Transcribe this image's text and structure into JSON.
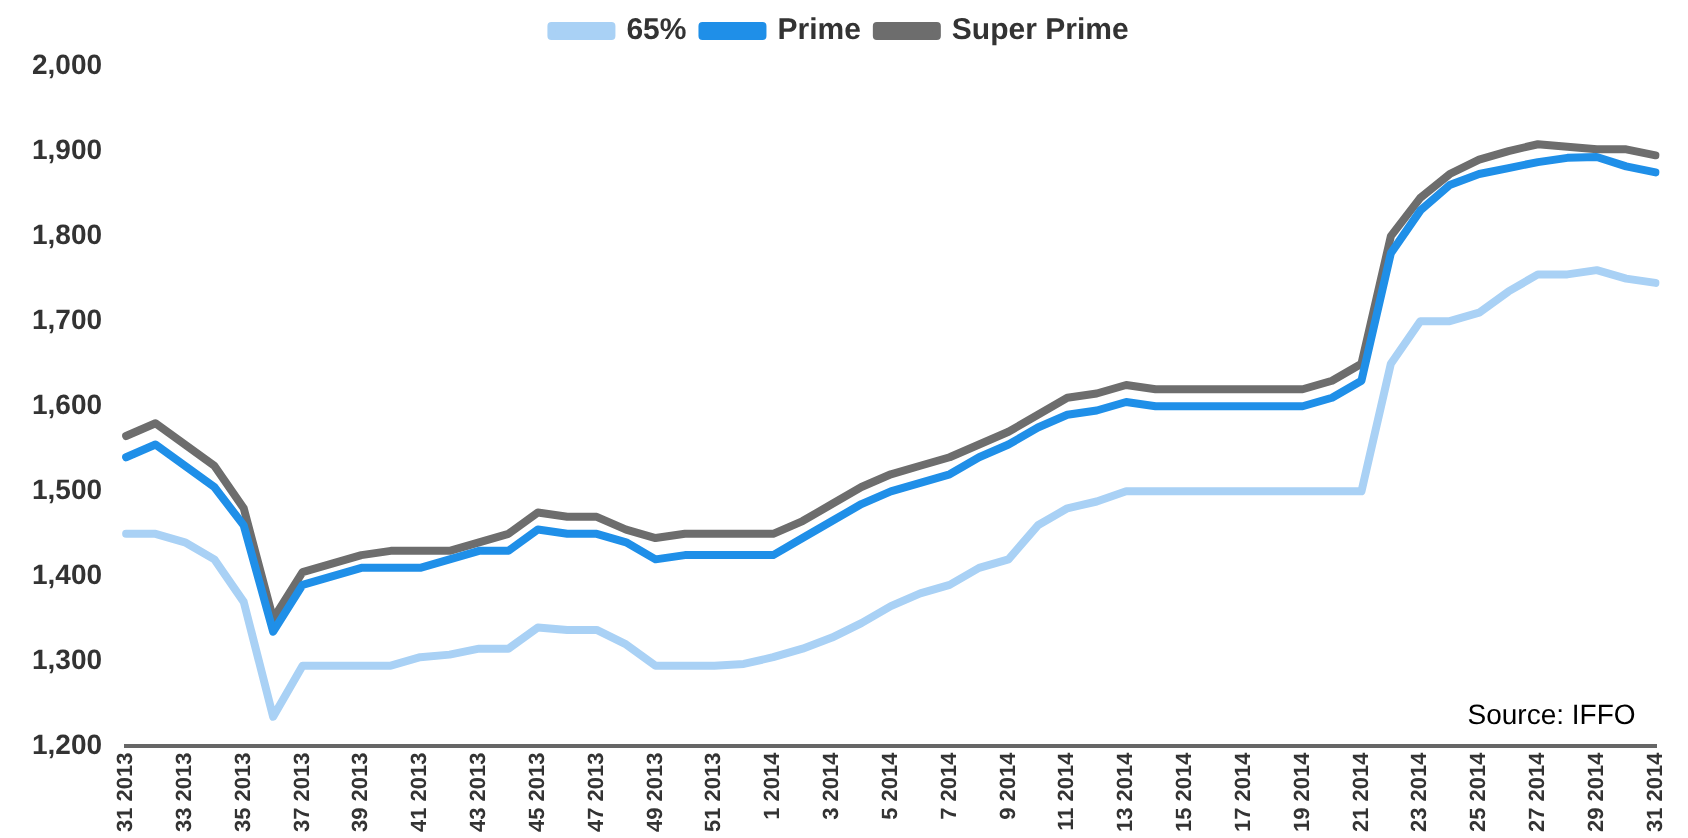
{
  "chart_data": {
    "type": "line",
    "categories": [
      "31 2013",
      null,
      "33 2013",
      null,
      "35 2013",
      null,
      "37 2013",
      null,
      "39 2013",
      null,
      "41 2013",
      null,
      "43 2013",
      null,
      "45 2013",
      null,
      "47 2013",
      null,
      "49 2013",
      null,
      "51 2013",
      null,
      "1 2014",
      null,
      "3 2014",
      null,
      "5 2014",
      null,
      "7 2014",
      null,
      "9 2014",
      null,
      "11 2014",
      null,
      "13 2014",
      null,
      "15 2014",
      null,
      "17 2014",
      null,
      "19 2014",
      null,
      "21 2014",
      null,
      "23 2014",
      null,
      "25 2014",
      null,
      "27 2014",
      null,
      "29 2014",
      null,
      "31 2014"
    ],
    "series": [
      {
        "name": "65%",
        "color": "#a9d1f5",
        "values": [
          1450,
          1450,
          1440,
          1420,
          1370,
          1235,
          1295,
          1295,
          1295,
          1295,
          1305,
          1308,
          1315,
          1315,
          1340,
          1337,
          1337,
          1320,
          1295,
          1295,
          1295,
          1297,
          1305,
          1315,
          1328,
          1345,
          1365,
          1380,
          1390,
          1410,
          1420,
          1460,
          1480,
          1488,
          1500,
          1500,
          1500,
          1500,
          1500,
          1500,
          1500,
          1500,
          1500,
          1650,
          1700,
          1700,
          1710,
          1735,
          1755,
          1755,
          1760,
          1750,
          1745
        ]
      },
      {
        "name": "Prime",
        "color": "#1f8fe8",
        "values": [
          1540,
          1555,
          1530,
          1505,
          1460,
          1335,
          1390,
          1400,
          1410,
          1410,
          1410,
          1420,
          1430,
          1430,
          1455,
          1450,
          1450,
          1440,
          1420,
          1425,
          1425,
          1425,
          1425,
          1445,
          1465,
          1485,
          1500,
          1510,
          1520,
          1540,
          1555,
          1575,
          1590,
          1595,
          1605,
          1600,
          1600,
          1600,
          1600,
          1600,
          1600,
          1610,
          1630,
          1780,
          1830,
          1860,
          1873,
          1880,
          1887,
          1892,
          1893,
          1882,
          1875
        ]
      },
      {
        "name": "Super Prime",
        "color": "#6d6d6d",
        "values": [
          1565,
          1580,
          1555,
          1530,
          1480,
          1350,
          1405,
          1415,
          1425,
          1430,
          1430,
          1430,
          1440,
          1450,
          1475,
          1470,
          1470,
          1455,
          1445,
          1450,
          1450,
          1450,
          1450,
          1465,
          1485,
          1505,
          1520,
          1530,
          1540,
          1555,
          1570,
          1590,
          1610,
          1615,
          1625,
          1620,
          1620,
          1620,
          1620,
          1620,
          1620,
          1630,
          1650,
          1800,
          1845,
          1873,
          1890,
          1900,
          1908,
          1905,
          1902,
          1902,
          1895
        ]
      }
    ],
    "ylim": [
      1200,
      2000
    ],
    "yticks": [
      {
        "value": 1200,
        "label": "1,200"
      },
      {
        "value": 1300,
        "label": "1,300"
      },
      {
        "value": 1400,
        "label": "1,400"
      },
      {
        "value": 1500,
        "label": "1,500"
      },
      {
        "value": 1600,
        "label": "1,600"
      },
      {
        "value": 1700,
        "label": "1,700"
      },
      {
        "value": 1800,
        "label": "1,800"
      },
      {
        "value": 1900,
        "label": "1,900"
      },
      {
        "value": 2000,
        "label": "2,000"
      }
    ],
    "grid": false,
    "legend": "top",
    "marker": "none",
    "line_style": "solid",
    "annotations": [
      "Source: IFFO"
    ]
  }
}
